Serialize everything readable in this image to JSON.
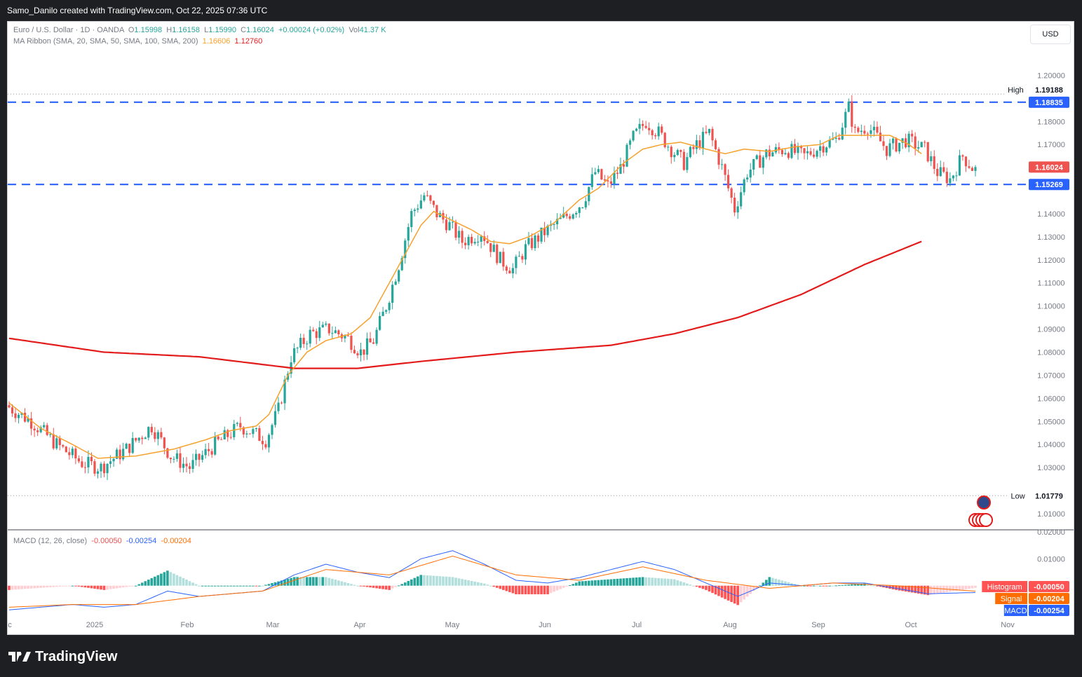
{
  "header": {
    "attribution": "Samo_Danilo created with TradingView.com, Oct 22, 2025 07:36 UTC"
  },
  "legend": {
    "symbol": "Euro / U.S. Dollar · 1D · OANDA",
    "o_label": "O",
    "o_value": "1.15998",
    "h_label": "H",
    "h_value": "1.16158",
    "l_label": "L",
    "l_value": "1.15990",
    "c_label": "C",
    "c_value": "1.16024",
    "change": "+0.00024 (+0.02%)",
    "vol_label": "Vol",
    "vol_value": "41.37 K",
    "ma_label": "MA Ribbon (SMA, 20, SMA, 50, SMA, 100, SMA, 200)",
    "ma_value_1": "1.16606",
    "ma_value_2": "1.12760"
  },
  "currency_button": "USD",
  "macd_legend": {
    "label": "MACD (12, 26, close)",
    "v1": "-0.00050",
    "v2": "-0.00254",
    "v3": "-0.00204"
  },
  "badges": {
    "high_label": "High",
    "high_value": "1.19188",
    "level_upper": "1.18835",
    "last_price": "1.16024",
    "level_lower": "1.15269",
    "low_label": "Low",
    "low_value": "1.01779",
    "histogram_label": "Histogram",
    "histogram_value": "-0.00050",
    "signal_label": "Signal",
    "signal_value": "-0.00204",
    "macd_label": "MACD",
    "macd_value": "-0.00254"
  },
  "colors": {
    "up": "#26a69a",
    "down": "#ef5350",
    "sma20": "#f7a12b",
    "sma200": "#e31b1b",
    "level_line": "#2962ff",
    "macd_line": "#2962ff",
    "signal_line": "#ff6d00",
    "hist_up_strong": "#26a69a",
    "hist_up_weak": "#b2dfdb",
    "hist_down_strong": "#ff5252",
    "hist_down_weak": "#ffcdd2"
  },
  "footer": {
    "brand": "TradingView"
  },
  "chart_data": {
    "type": "candlestick",
    "symbol": "EUR/USD",
    "timeframe": "1D",
    "y_ticks": [
      "1.20000",
      "1.18000",
      "1.17000",
      "1.14000",
      "1.13000",
      "1.12000",
      "1.11000",
      "1.10000",
      "1.09000",
      "1.08000",
      "1.07000",
      "1.06000",
      "1.05000",
      "1.04000",
      "1.03000",
      "1.01000"
    ],
    "macd_y_ticks": [
      "0.02000",
      "0.01000"
    ],
    "x_labels": [
      "ec",
      "2025",
      "Feb",
      "Mar",
      "Apr",
      "May",
      "Jun",
      "Jul",
      "Aug",
      "Sep",
      "Oct",
      "Nov"
    ],
    "y_range": [
      1.003,
      1.205
    ],
    "macd_range": [
      -0.0105,
      0.0205
    ],
    "horizontal_levels": [
      1.18835,
      1.15269
    ],
    "high": 1.19188,
    "low": 1.01779,
    "last_close": 1.16024,
    "sma20_anchor": [
      [
        0,
        1.058
      ],
      [
        10,
        1.047
      ],
      [
        20,
        1.04
      ],
      [
        28,
        1.034
      ],
      [
        40,
        1.035
      ],
      [
        52,
        1.038
      ],
      [
        62,
        1.042
      ],
      [
        70,
        1.046
      ],
      [
        78,
        1.048
      ],
      [
        82,
        1.053
      ],
      [
        88,
        1.07
      ],
      [
        94,
        1.08
      ],
      [
        100,
        1.085
      ],
      [
        108,
        1.088
      ],
      [
        114,
        1.095
      ],
      [
        122,
        1.115
      ],
      [
        130,
        1.135
      ],
      [
        134,
        1.141
      ],
      [
        140,
        1.137
      ],
      [
        146,
        1.133
      ],
      [
        152,
        1.128
      ],
      [
        158,
        1.127
      ],
      [
        164,
        1.13
      ],
      [
        172,
        1.136
      ],
      [
        180,
        1.146
      ],
      [
        186,
        1.151
      ],
      [
        194,
        1.162
      ],
      [
        200,
        1.168
      ],
      [
        206,
        1.17
      ],
      [
        212,
        1.171
      ],
      [
        220,
        1.168
      ],
      [
        226,
        1.166
      ],
      [
        232,
        1.168
      ],
      [
        240,
        1.167
      ],
      [
        248,
        1.169
      ],
      [
        256,
        1.17
      ],
      [
        262,
        1.174
      ],
      [
        270,
        1.174
      ],
      [
        278,
        1.174
      ],
      [
        284,
        1.17
      ],
      [
        288,
        1.166
      ]
    ],
    "sma200_anchor": [
      [
        0,
        1.086
      ],
      [
        30,
        1.08
      ],
      [
        60,
        1.078
      ],
      [
        90,
        1.073
      ],
      [
        110,
        1.073
      ],
      [
        130,
        1.076
      ],
      [
        160,
        1.08
      ],
      [
        190,
        1.083
      ],
      [
        210,
        1.088
      ],
      [
        230,
        1.095
      ],
      [
        250,
        1.105
      ],
      [
        270,
        1.118
      ],
      [
        288,
        1.128
      ]
    ],
    "candles_key_points": [
      [
        0,
        1.057
      ],
      [
        8,
        1.05
      ],
      [
        16,
        1.04
      ],
      [
        24,
        1.032
      ],
      [
        30,
        1.03
      ],
      [
        38,
        1.038
      ],
      [
        46,
        1.048
      ],
      [
        52,
        1.035
      ],
      [
        58,
        1.03
      ],
      [
        66,
        1.04
      ],
      [
        74,
        1.048
      ],
      [
        82,
        1.042
      ],
      [
        86,
        1.055
      ],
      [
        90,
        1.078
      ],
      [
        96,
        1.088
      ],
      [
        102,
        1.09
      ],
      [
        108,
        1.086
      ],
      [
        112,
        1.08
      ],
      [
        116,
        1.085
      ],
      [
        120,
        1.1
      ],
      [
        124,
        1.118
      ],
      [
        128,
        1.14
      ],
      [
        132,
        1.148
      ],
      [
        136,
        1.14
      ],
      [
        140,
        1.135
      ],
      [
        144,
        1.128
      ],
      [
        150,
        1.132
      ],
      [
        156,
        1.12
      ],
      [
        160,
        1.116
      ],
      [
        164,
        1.125
      ],
      [
        170,
        1.132
      ],
      [
        176,
        1.138
      ],
      [
        182,
        1.145
      ],
      [
        186,
        1.158
      ],
      [
        190,
        1.152
      ],
      [
        194,
        1.16
      ],
      [
        198,
        1.173
      ],
      [
        202,
        1.18
      ],
      [
        206,
        1.175
      ],
      [
        210,
        1.168
      ],
      [
        214,
        1.162
      ],
      [
        218,
        1.17
      ],
      [
        222,
        1.175
      ],
      [
        226,
        1.16
      ],
      [
        230,
        1.142
      ],
      [
        234,
        1.158
      ],
      [
        240,
        1.166
      ],
      [
        246,
        1.168
      ],
      [
        252,
        1.165
      ],
      [
        258,
        1.17
      ],
      [
        262,
        1.172
      ],
      [
        266,
        1.186
      ],
      [
        268,
        1.175
      ],
      [
        272,
        1.178
      ],
      [
        278,
        1.168
      ],
      [
        284,
        1.172
      ],
      [
        290,
        1.168
      ],
      [
        294,
        1.158
      ],
      [
        298,
        1.155
      ],
      [
        302,
        1.165
      ],
      [
        305,
        1.16
      ]
    ],
    "macd_line_anchor": [
      [
        0,
        -0.009
      ],
      [
        20,
        -0.007
      ],
      [
        30,
        -0.008
      ],
      [
        40,
        -0.007
      ],
      [
        50,
        -0.002
      ],
      [
        60,
        -0.004
      ],
      [
        70,
        -0.003
      ],
      [
        80,
        -0.002
      ],
      [
        90,
        0.004
      ],
      [
        100,
        0.008
      ],
      [
        110,
        0.005
      ],
      [
        120,
        0.003
      ],
      [
        130,
        0.01
      ],
      [
        140,
        0.013
      ],
      [
        150,
        0.008
      ],
      [
        160,
        0.002
      ],
      [
        170,
        0.001
      ],
      [
        180,
        0.003
      ],
      [
        190,
        0.006
      ],
      [
        200,
        0.009
      ],
      [
        210,
        0.006
      ],
      [
        220,
        0.001
      ],
      [
        230,
        -0.004
      ],
      [
        240,
        0.001
      ],
      [
        250,
        0.0
      ],
      [
        260,
        0.001
      ],
      [
        270,
        0.001
      ],
      [
        280,
        -0.001
      ],
      [
        290,
        -0.003
      ],
      [
        305,
        -0.00254
      ]
    ],
    "signal_line_anchor": [
      [
        0,
        -0.008
      ],
      [
        20,
        -0.007
      ],
      [
        40,
        -0.007
      ],
      [
        60,
        -0.004
      ],
      [
        80,
        -0.002
      ],
      [
        100,
        0.006
      ],
      [
        120,
        0.004
      ],
      [
        140,
        0.011
      ],
      [
        160,
        0.004
      ],
      [
        180,
        0.002
      ],
      [
        200,
        0.007
      ],
      [
        220,
        0.002
      ],
      [
        240,
        -0.001
      ],
      [
        260,
        0.001
      ],
      [
        280,
        0.0
      ],
      [
        305,
        -0.00204
      ]
    ]
  }
}
